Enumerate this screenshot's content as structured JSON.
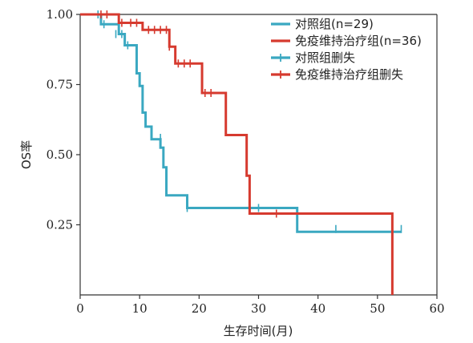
{
  "chart_data": {
    "type": "line",
    "xlabel": "生存时间(月)",
    "ylabel": "OS率",
    "xlim": [
      0,
      60
    ],
    "ylim": [
      0,
      1.0
    ],
    "x_ticks": [
      "0",
      "10",
      "20",
      "30",
      "40",
      "50",
      "60"
    ],
    "y_ticks": [
      "0.25",
      "0.50",
      "0.75",
      "1.00"
    ],
    "x_tick_values": [
      0,
      10,
      20,
      30,
      40,
      50,
      60
    ],
    "y_tick_values": [
      0.25,
      0.5,
      0.75,
      1.0
    ],
    "grid": false,
    "legend_position": "top-right",
    "legend": [
      {
        "label": "对照组(n=29)",
        "color": "#3aa8c1",
        "kind": "line"
      },
      {
        "label": "免疫维持治疗组(n=36)",
        "color": "#d63a2f",
        "kind": "line"
      },
      {
        "label": "对照组删失",
        "color": "#3aa8c1",
        "kind": "censor"
      },
      {
        "label": "免疫维持治疗组删失",
        "color": "#d63a2f",
        "kind": "censor"
      }
    ],
    "series": [
      {
        "name": "对照组(n=29)",
        "color": "#3aa8c1",
        "steps": [
          [
            0,
            1.0
          ],
          [
            3.5,
            0.965
          ],
          [
            6.5,
            0.93
          ],
          [
            7.5,
            0.89
          ],
          [
            9.5,
            0.79
          ],
          [
            10.0,
            0.745
          ],
          [
            10.5,
            0.65
          ],
          [
            11.0,
            0.6
          ],
          [
            12.0,
            0.555
          ],
          [
            13.5,
            0.525
          ],
          [
            14.0,
            0.455
          ],
          [
            14.5,
            0.355
          ],
          [
            18.0,
            0.31
          ],
          [
            36.5,
            0.225
          ],
          [
            54.0,
            0.225
          ]
        ],
        "censors": [
          [
            3.0,
            1.0
          ],
          [
            4.0,
            0.965
          ],
          [
            6.0,
            0.93
          ],
          [
            7.0,
            0.93
          ],
          [
            8.0,
            0.89
          ],
          [
            13.5,
            0.56
          ],
          [
            18.0,
            0.31
          ],
          [
            30.0,
            0.31
          ],
          [
            43.0,
            0.235
          ],
          [
            54.0,
            0.235
          ]
        ]
      },
      {
        "name": "免疫维持治疗组(n=36)",
        "color": "#d63a2f",
        "steps": [
          [
            0,
            1.0
          ],
          [
            6.5,
            0.97
          ],
          [
            10.5,
            0.945
          ],
          [
            15.0,
            0.885
          ],
          [
            16.0,
            0.825
          ],
          [
            20.5,
            0.72
          ],
          [
            24.5,
            0.57
          ],
          [
            28.0,
            0.425
          ],
          [
            28.5,
            0.29
          ],
          [
            52.5,
            0.29
          ],
          [
            52.5,
            0.0
          ]
        ],
        "censors": [
          [
            3.5,
            1.0
          ],
          [
            4.5,
            1.0
          ],
          [
            7.0,
            0.97
          ],
          [
            8.5,
            0.97
          ],
          [
            9.5,
            0.97
          ],
          [
            11.5,
            0.945
          ],
          [
            12.5,
            0.945
          ],
          [
            13.5,
            0.945
          ],
          [
            14.5,
            0.945
          ],
          [
            15.0,
            0.885
          ],
          [
            16.5,
            0.825
          ],
          [
            17.5,
            0.825
          ],
          [
            18.5,
            0.825
          ],
          [
            21.0,
            0.72
          ],
          [
            22.0,
            0.72
          ],
          [
            33.0,
            0.29
          ]
        ]
      }
    ]
  }
}
